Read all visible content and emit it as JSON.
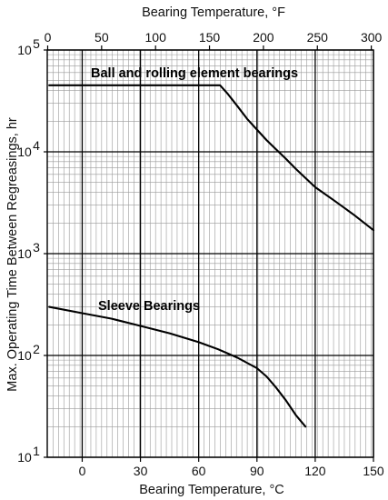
{
  "chart_data": {
    "type": "line",
    "title": "",
    "xlabel": "Bearing Temperature, °C",
    "x2label": "Bearing Temperature, °F",
    "ylabel": "Max. Operating Time Between Regreasings, hr",
    "xlim_c": [
      -18,
      150
    ],
    "xticks_c": [
      0,
      30,
      60,
      90,
      120,
      150
    ],
    "xlim_f": [
      0,
      302
    ],
    "xticks_f": [
      0,
      50,
      100,
      150,
      200,
      250,
      300
    ],
    "yscale": "log",
    "ylim": [
      10,
      100000
    ],
    "yticks": [
      {
        "base": "10",
        "exp": "1"
      },
      {
        "base": "10",
        "exp": "2"
      },
      {
        "base": "10",
        "exp": "3"
      },
      {
        "base": "10",
        "exp": "4"
      },
      {
        "base": "10",
        "exp": "5"
      }
    ],
    "grid": true,
    "series": [
      {
        "name": "Ball and rolling element bearings",
        "x": [
          -17,
          0,
          30,
          60,
          71,
          75,
          80,
          85,
          90,
          95,
          100,
          105,
          110,
          120,
          130,
          140,
          150
        ],
        "y": [
          45000,
          45000,
          45000,
          45000,
          45000,
          37000,
          28000,
          21000,
          16500,
          13000,
          10500,
          8500,
          6800,
          4500,
          3300,
          2400,
          1700
        ]
      },
      {
        "name": "Sleeve Bearings",
        "x": [
          -17,
          0,
          15,
          30,
          45,
          60,
          70,
          80,
          90,
          95,
          100,
          105,
          110,
          115
        ],
        "y": [
          300,
          260,
          230,
          195,
          165,
          135,
          115,
          95,
          75,
          62,
          48,
          36,
          26,
          20
        ]
      }
    ]
  }
}
